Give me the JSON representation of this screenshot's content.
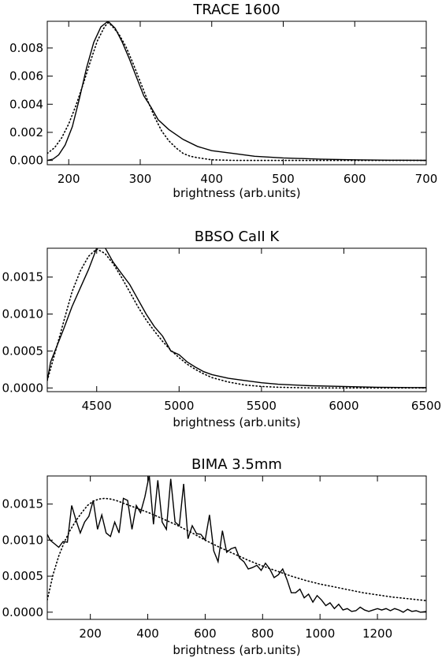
{
  "chart_data": [
    {
      "type": "line",
      "title": "TRACE 1600",
      "xlabel": "brightness (arb.units)",
      "ylabel": "",
      "xlim": [
        170,
        700
      ],
      "ylim": [
        -0.0003,
        0.0099
      ],
      "xticks": [
        200,
        300,
        400,
        500,
        600,
        700
      ],
      "xtick_labels": [
        "200",
        "300",
        "400",
        "500",
        "600",
        "700"
      ],
      "yticks": [
        0.0,
        0.002,
        0.004,
        0.006,
        0.008
      ],
      "ytick_labels": [
        "0.000",
        "0.002",
        "0.004",
        "0.006",
        "0.008"
      ],
      "series": [
        {
          "style": "solid",
          "x": [
            170,
            178,
            186,
            195,
            205,
            215,
            225,
            235,
            245,
            255,
            265,
            275,
            285,
            295,
            305,
            315,
            325,
            340,
            360,
            380,
            400,
            430,
            460,
            500,
            550,
            600,
            650,
            700
          ],
          "y": [
            0,
            0.0001,
            0.0004,
            0.0011,
            0.0024,
            0.0044,
            0.0066,
            0.0084,
            0.0095,
            0.0099,
            0.0094,
            0.0084,
            0.0072,
            0.0059,
            0.0046,
            0.0038,
            0.0029,
            0.0022,
            0.0015,
            0.001,
            0.0007,
            0.0005,
            0.0003,
            0.00018,
            0.0001,
            5e-05,
            2e-05,
            1e-05
          ]
        },
        {
          "style": "dotted",
          "x": [
            170,
            180,
            190,
            200,
            210,
            220,
            230,
            240,
            250,
            255,
            260,
            270,
            280,
            290,
            300,
            310,
            320,
            330,
            340,
            350,
            360,
            370,
            380,
            400,
            430,
            460,
            500,
            550,
            600,
            700
          ],
          "y": [
            0.0005,
            0.0009,
            0.0016,
            0.0026,
            0.0039,
            0.0054,
            0.007,
            0.0085,
            0.0095,
            0.0098,
            0.0096,
            0.009,
            0.0081,
            0.0069,
            0.0056,
            0.0043,
            0.0031,
            0.0021,
            0.0014,
            0.0009,
            0.0005,
            0.0003,
            0.0002,
            5e-05,
            1e-05,
            0,
            0,
            0,
            0,
            0
          ]
        }
      ]
    },
    {
      "type": "line",
      "title": "BBSO CaII K",
      "xlabel": "brightness (arb.units)",
      "ylabel": "",
      "xlim": [
        4200,
        6500
      ],
      "ylim": [
        -5e-05,
        0.00189
      ],
      "xticks": [
        4500,
        5000,
        5500,
        6000,
        6500
      ],
      "xtick_labels": [
        "4500",
        "5000",
        "5500",
        "6000",
        "6500"
      ],
      "yticks": [
        0.0,
        0.0005,
        0.001,
        0.0015
      ],
      "ytick_labels": [
        "0.0000",
        "0.0005",
        "0.0010",
        "0.0015"
      ],
      "series": [
        {
          "style": "solid",
          "x": [
            4200,
            4220,
            4300,
            4350,
            4400,
            4450,
            4500,
            4550,
            4600,
            4650,
            4700,
            4750,
            4800,
            4850,
            4900,
            4950,
            5000,
            5050,
            5100,
            5150,
            5200,
            5300,
            5400,
            5500,
            5600,
            5700,
            5800,
            6000,
            6200,
            6400,
            6500
          ],
          "y": [
            0.0001,
            0.00035,
            0.0008,
            0.0011,
            0.00135,
            0.0016,
            0.00189,
            0.0019,
            0.0017,
            0.00155,
            0.0014,
            0.0012,
            0.001,
            0.00083,
            0.0007,
            0.0005,
            0.00045,
            0.00035,
            0.00028,
            0.00022,
            0.00018,
            0.00013,
            0.0001,
            7e-05,
            5e-05,
            4e-05,
            3e-05,
            2e-05,
            1e-05,
            5e-06,
            5e-06
          ]
        },
        {
          "style": "dotted",
          "x": [
            4200,
            4250,
            4300,
            4350,
            4400,
            4450,
            4500,
            4550,
            4600,
            4650,
            4700,
            4750,
            4800,
            4850,
            4900,
            4950,
            5000,
            5050,
            5100,
            5150,
            5200,
            5300,
            5400,
            5500,
            5600,
            5800,
            6000,
            6500
          ],
          "y": [
            0.0001,
            0.0005,
            0.0009,
            0.0013,
            0.00158,
            0.00178,
            0.00188,
            0.00182,
            0.00168,
            0.0015,
            0.0013,
            0.0011,
            0.00092,
            0.00077,
            0.00063,
            0.00051,
            0.00041,
            0.00032,
            0.00025,
            0.00019,
            0.00014,
            8e-05,
            4e-05,
            2e-05,
            1e-05,
            0,
            0,
            0
          ]
        }
      ]
    },
    {
      "type": "line",
      "title": "BIMA 3.5mm",
      "xlabel": "brightness (arb.units)",
      "ylabel": "",
      "xlim": [
        50,
        1370
      ],
      "ylim": [
        -0.0001,
        0.00189
      ],
      "xticks": [
        200,
        400,
        600,
        800,
        1000,
        1200
      ],
      "xtick_labels": [
        "200",
        "400",
        "600",
        "800",
        "1000",
        "1200"
      ],
      "yticks": [
        0.0,
        0.0005,
        0.001,
        0.0015
      ],
      "ytick_labels": [
        "0.0000",
        "0.0005",
        "0.0010",
        "0.0015"
      ],
      "series": [
        {
          "style": "solid",
          "x": [
            50,
            60,
            75,
            90,
            105,
            120,
            135,
            150,
            165,
            180,
            195,
            210,
            225,
            240,
            255,
            270,
            285,
            300,
            315,
            330,
            345,
            360,
            375,
            390,
            405,
            420,
            435,
            450,
            465,
            480,
            495,
            510,
            525,
            540,
            555,
            570,
            585,
            600,
            615,
            630,
            645,
            660,
            675,
            690,
            705,
            720,
            735,
            750,
            765,
            780,
            795,
            810,
            825,
            840,
            855,
            870,
            885,
            900,
            915,
            930,
            945,
            960,
            975,
            990,
            1005,
            1020,
            1035,
            1050,
            1065,
            1080,
            1095,
            1110,
            1125,
            1140,
            1155,
            1170,
            1185,
            1200,
            1215,
            1230,
            1245,
            1260,
            1275,
            1290,
            1305,
            1320,
            1335,
            1350,
            1370
          ],
          "y": [
            0.00108,
            0.001,
            0.00095,
            0.0009,
            0.00098,
            0.00097,
            0.00148,
            0.00128,
            0.0011,
            0.00125,
            0.00133,
            0.00155,
            0.00115,
            0.00135,
            0.0011,
            0.00105,
            0.00125,
            0.0011,
            0.00158,
            0.00155,
            0.00115,
            0.00148,
            0.00138,
            0.0016,
            0.0019,
            0.00122,
            0.00183,
            0.00125,
            0.00115,
            0.00185,
            0.00125,
            0.0012,
            0.00178,
            0.00102,
            0.0012,
            0.00109,
            0.00108,
            0.001,
            0.00135,
            0.00085,
            0.0007,
            0.00113,
            0.00083,
            0.00088,
            0.0009,
            0.00075,
            0.0007,
            0.0006,
            0.00062,
            0.00065,
            0.00058,
            0.00068,
            0.0006,
            0.00048,
            0.00052,
            0.0006,
            0.00045,
            0.00027,
            0.00027,
            0.00032,
            0.0002,
            0.00025,
            0.00014,
            0.00023,
            0.00017,
            9e-05,
            0.00013,
            5e-05,
            0.00011,
            3e-05,
            5e-05,
            1e-05,
            2e-05,
            7e-05,
            3e-05,
            1e-05,
            3e-05,
            5e-05,
            3e-05,
            5e-05,
            2e-05,
            5e-05,
            3e-05,
            0.0,
            4e-05,
            1e-05,
            2e-05,
            0.0,
            1e-05
          ]
        },
        {
          "style": "dotted",
          "x": [
            50,
            70,
            90,
            110,
            130,
            150,
            170,
            190,
            210,
            230,
            250,
            270,
            290,
            310,
            330,
            350,
            370,
            390,
            410,
            450,
            500,
            550,
            600,
            650,
            700,
            750,
            800,
            850,
            900,
            950,
            1000,
            1050,
            1100,
            1150,
            1200,
            1250,
            1300,
            1370
          ],
          "y": [
            0.00017,
            0.00052,
            0.00078,
            0.00098,
            0.00114,
            0.00127,
            0.00138,
            0.00148,
            0.00154,
            0.00157,
            0.00158,
            0.00157,
            0.00155,
            0.00152,
            0.00149,
            0.00146,
            0.00143,
            0.0014,
            0.00137,
            0.0013,
            0.00121,
            0.00111,
            0.001,
            0.0009,
            0.00081,
            0.00072,
            0.00064,
            0.00057,
            0.0005,
            0.00044,
            0.00039,
            0.00035,
            0.00031,
            0.00027,
            0.00024,
            0.00021,
            0.00019,
            0.00016
          ]
        }
      ]
    }
  ]
}
